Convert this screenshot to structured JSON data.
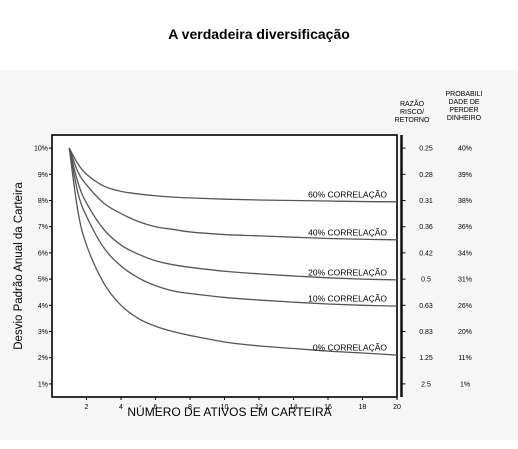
{
  "title": "A verdadeira diversificação",
  "chart_data": {
    "type": "line",
    "xlabel": "NÚMERO DE ATIVOS EM CARTEIRA",
    "ylabel": "Desvio Padrão Anual da Carteira",
    "xlim": [
      0,
      20
    ],
    "ylim": [
      0.5,
      10.5
    ],
    "x_ticks": [
      2,
      4,
      6,
      8,
      10,
      12,
      14,
      16,
      18,
      20
    ],
    "y_ticks": [
      1,
      2,
      3,
      4,
      5,
      6,
      7,
      8,
      9,
      10
    ],
    "y_tick_labels": [
      "1%",
      "2%",
      "3%",
      "4%",
      "5%",
      "6%",
      "7%",
      "8%",
      "9%",
      "10%"
    ],
    "x": [
      1,
      1.5,
      2,
      3,
      4,
      5,
      6,
      7,
      8,
      10,
      12,
      14,
      16,
      18,
      20
    ],
    "series": [
      {
        "name": "60% CORRELAÇÃO",
        "values": [
          10.0,
          9.4,
          9.0,
          8.55,
          8.35,
          8.25,
          8.18,
          8.13,
          8.1,
          8.05,
          8.02,
          8.0,
          7.98,
          7.96,
          7.95
        ]
      },
      {
        "name": "40% CORRELAÇÃO",
        "values": [
          10.0,
          9.1,
          8.6,
          7.9,
          7.5,
          7.2,
          7.0,
          6.9,
          6.8,
          6.7,
          6.65,
          6.6,
          6.55,
          6.52,
          6.5
        ]
      },
      {
        "name": "20% CORRELAÇÃO",
        "values": [
          10.0,
          8.7,
          7.9,
          6.9,
          6.3,
          5.95,
          5.7,
          5.55,
          5.45,
          5.3,
          5.2,
          5.12,
          5.05,
          5.0,
          4.97
        ]
      },
      {
        "name": "10% CORRELAÇÃO",
        "values": [
          10.0,
          8.3,
          7.4,
          6.2,
          5.5,
          5.05,
          4.75,
          4.55,
          4.45,
          4.3,
          4.2,
          4.12,
          4.05,
          4.0,
          3.97
        ]
      },
      {
        "name": "0% CORRELAÇÃO",
        "values": [
          10.0,
          7.6,
          6.3,
          4.85,
          4.0,
          3.5,
          3.2,
          3.0,
          2.85,
          2.6,
          2.45,
          2.35,
          2.25,
          2.18,
          2.1
        ]
      }
    ],
    "side_columns": {
      "ratio_header": [
        "RAZÃO",
        "RISCO/",
        "RETORNO"
      ],
      "probability_header": [
        "PROBABILI",
        "DADE DE",
        "PERDER",
        "DINHEIRO"
      ],
      "rows": [
        {
          "level": 10,
          "ratio": "0.25",
          "probability": "40%"
        },
        {
          "level": 9,
          "ratio": "0.28",
          "probability": "39%"
        },
        {
          "level": 8,
          "ratio": "0.31",
          "probability": "38%"
        },
        {
          "level": 7,
          "ratio": "0.36",
          "probability": "36%"
        },
        {
          "level": 6,
          "ratio": "0.42",
          "probability": "34%"
        },
        {
          "level": 5,
          "ratio": "0.5",
          "probability": "31%"
        },
        {
          "level": 4,
          "ratio": "0.63",
          "probability": "26%"
        },
        {
          "level": 3,
          "ratio": "0.83",
          "probability": "20%"
        },
        {
          "level": 2,
          "ratio": "1.25",
          "probability": "11%"
        },
        {
          "level": 1,
          "ratio": "2.5",
          "probability": "1%"
        }
      ]
    },
    "grid": false,
    "legend": "none"
  }
}
